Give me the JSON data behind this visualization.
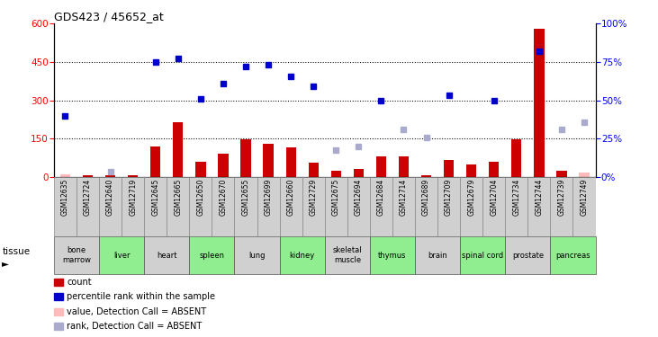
{
  "title": "GDS423 / 45652_at",
  "samples": [
    "GSM12635",
    "GSM12724",
    "GSM12640",
    "GSM12719",
    "GSM12645",
    "GSM12665",
    "GSM12650",
    "GSM12670",
    "GSM12655",
    "GSM12699",
    "GSM12660",
    "GSM12729",
    "GSM12675",
    "GSM12694",
    "GSM12684",
    "GSM12714",
    "GSM12689",
    "GSM12709",
    "GSM12679",
    "GSM12704",
    "GSM12734",
    "GSM12744",
    "GSM12739",
    "GSM12749"
  ],
  "tissues": [
    {
      "name": "bone\nmarrow",
      "start": 0,
      "end": 2,
      "color": "#d0d0d0"
    },
    {
      "name": "liver",
      "start": 2,
      "end": 4,
      "color": "#90ee90"
    },
    {
      "name": "heart",
      "start": 4,
      "end": 6,
      "color": "#d0d0d0"
    },
    {
      "name": "spleen",
      "start": 6,
      "end": 8,
      "color": "#90ee90"
    },
    {
      "name": "lung",
      "start": 8,
      "end": 10,
      "color": "#d0d0d0"
    },
    {
      "name": "kidney",
      "start": 10,
      "end": 12,
      "color": "#90ee90"
    },
    {
      "name": "skeletal\nmuscle",
      "start": 12,
      "end": 14,
      "color": "#d0d0d0"
    },
    {
      "name": "thymus",
      "start": 14,
      "end": 16,
      "color": "#90ee90"
    },
    {
      "name": "brain",
      "start": 16,
      "end": 18,
      "color": "#d0d0d0"
    },
    {
      "name": "spinal cord",
      "start": 18,
      "end": 20,
      "color": "#90ee90"
    },
    {
      "name": "prostate",
      "start": 20,
      "end": 22,
      "color": "#d0d0d0"
    },
    {
      "name": "pancreas",
      "start": 22,
      "end": 24,
      "color": "#90ee90"
    }
  ],
  "bar_values": [
    10,
    5,
    5,
    8,
    120,
    215,
    60,
    90,
    148,
    130,
    115,
    55,
    25,
    30,
    80,
    80,
    8,
    65,
    50,
    60,
    148,
    580,
    25,
    18
  ],
  "bar_absent": [
    true,
    false,
    false,
    false,
    false,
    false,
    false,
    false,
    false,
    false,
    false,
    false,
    false,
    false,
    false,
    false,
    false,
    false,
    false,
    false,
    false,
    false,
    false,
    true
  ],
  "rank_values": [
    240,
    null,
    null,
    null,
    450,
    465,
    305,
    365,
    432,
    438,
    395,
    355,
    null,
    null,
    300,
    null,
    null,
    320,
    null,
    298,
    null,
    492,
    null,
    null
  ],
  "pct_values": [
    null,
    null,
    20,
    null,
    null,
    null,
    null,
    null,
    null,
    null,
    null,
    null,
    105,
    120,
    null,
    185,
    155,
    null,
    null,
    null,
    null,
    null,
    185,
    215
  ],
  "ylim_left": [
    0,
    600
  ],
  "yticks_left": [
    0,
    150,
    300,
    450,
    600
  ],
  "ylim_right": [
    0,
    100
  ],
  "yticks_right": [
    0,
    25,
    50,
    75,
    100
  ],
  "bar_color": "#cc0000",
  "bar_absent_color": "#ffbbbb",
  "rank_color": "#0000cc",
  "rank_absent_color": "#aaaacc",
  "legend_items": [
    {
      "label": "count",
      "color": "#cc0000"
    },
    {
      "label": "percentile rank within the sample",
      "color": "#0000cc"
    },
    {
      "label": "value, Detection Call = ABSENT",
      "color": "#ffbbbb"
    },
    {
      "label": "rank, Detection Call = ABSENT",
      "color": "#aaaacc"
    }
  ]
}
